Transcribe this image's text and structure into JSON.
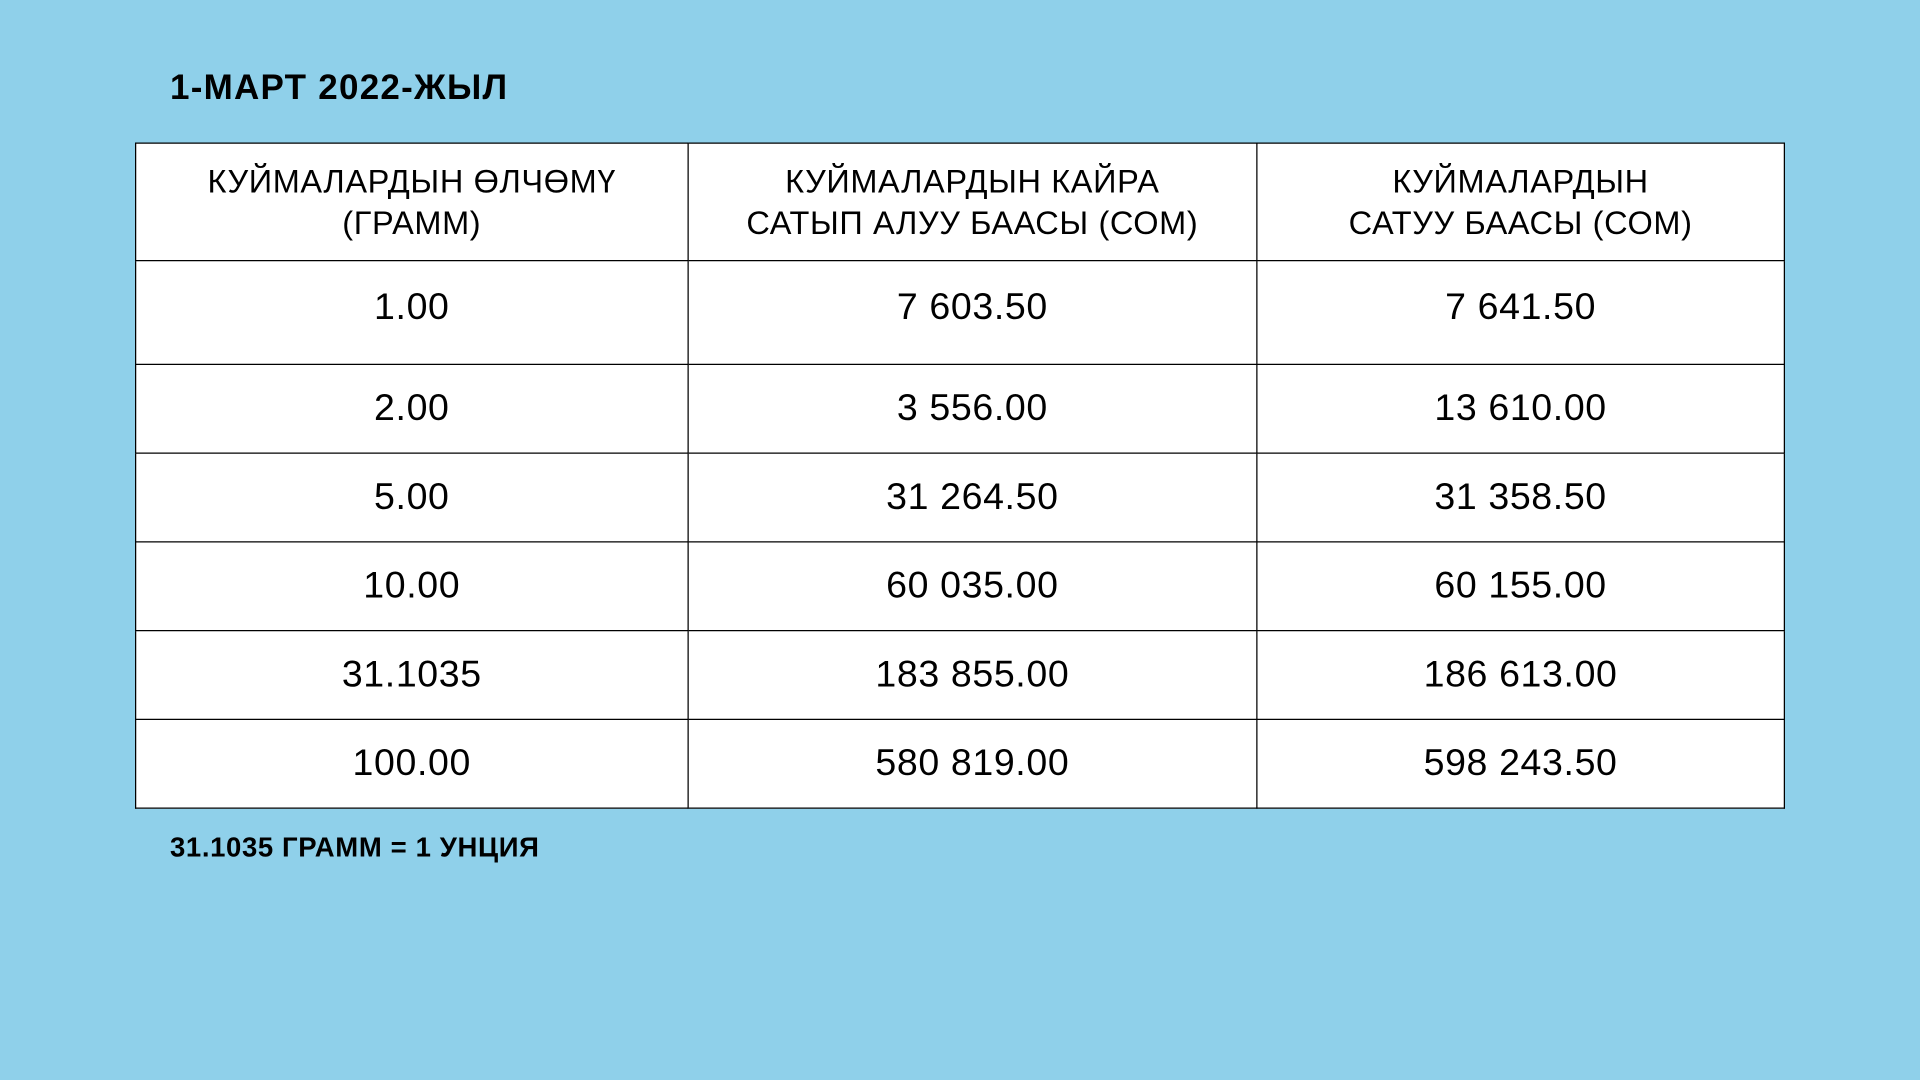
{
  "date_title": "1-МАРТ 2022-ЖЫЛ",
  "table": {
    "columns": [
      {
        "line1": "КУЙМАЛАРДЫН ӨЛЧӨМҮ",
        "line2": "(ГРАММ)"
      },
      {
        "line1": "КУЙМАЛАРДЫН КАЙРА",
        "line2": "САТЫП АЛУУ БААСЫ (СОМ)"
      },
      {
        "line1": "КУЙМАЛАРДЫН",
        "line2": "САТУУ БААСЫ (СОМ)"
      }
    ],
    "rows": [
      {
        "size": "1.00",
        "buy": "7 603.50",
        "sell": "7 641.50"
      },
      {
        "size": "2.00",
        "buy": "3 556.00",
        "sell": "13 610.00"
      },
      {
        "size": "5.00",
        "buy": "31 264.50",
        "sell": "31 358.50"
      },
      {
        "size": "10.00",
        "buy": "60 035.00",
        "sell": "60 155.00"
      },
      {
        "size": "31.1035",
        "buy": "183 855.00",
        "sell": "186 613.00"
      },
      {
        "size": "100.00",
        "buy": "580 819.00",
        "sell": "598 243.50"
      }
    ],
    "col_widths": [
      "33.5%",
      "34.5%",
      "32%"
    ],
    "background_color": "#ffffff",
    "border_color": "#000000"
  },
  "footnote": "31.1035  ГРАММ = 1 УНЦИЯ",
  "page_background": "#8fd0ea"
}
